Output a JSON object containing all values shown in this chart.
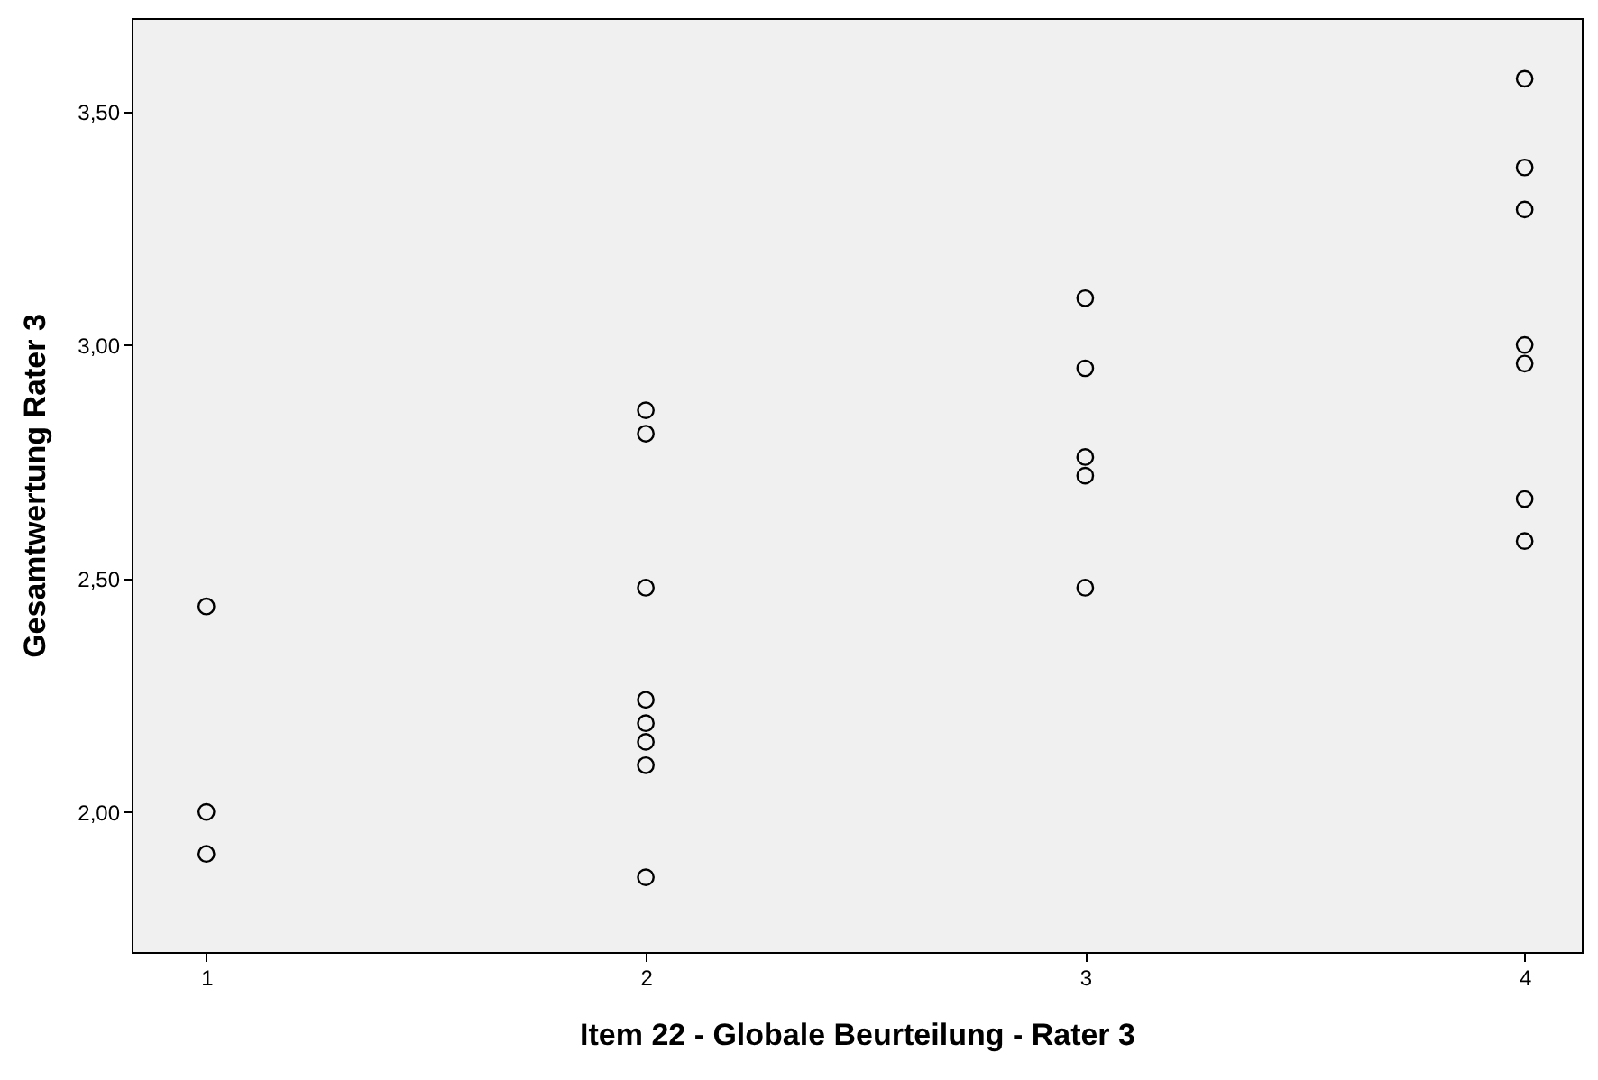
{
  "chart_data": {
    "type": "scatter",
    "xlabel": "Item 22 - Globale Beurteilung - Rater 3",
    "ylabel": "Gesamtwertung Rater 3",
    "x": [
      1,
      1,
      1,
      2,
      2,
      2,
      2,
      2,
      2,
      2,
      2,
      3,
      3,
      3,
      3,
      3,
      4,
      4,
      4,
      4,
      4,
      4,
      4
    ],
    "values": [
      2.44,
      2.0,
      1.91,
      2.86,
      2.81,
      2.48,
      2.24,
      2.19,
      2.15,
      2.1,
      1.86,
      3.1,
      2.95,
      2.76,
      2.72,
      2.48,
      3.57,
      3.38,
      3.29,
      3.0,
      2.96,
      2.67,
      2.58
    ],
    "color": "#000000",
    "marker": "circle",
    "grid": false,
    "xlim": [
      0.83,
      4.13
    ],
    "xticks": [
      1,
      2,
      3,
      4
    ],
    "ylim": [
      1.7,
      3.7
    ],
    "yticks": [
      {
        "value": 2,
        "label": "2,00"
      },
      {
        "value": 2.5,
        "label": "2,50"
      },
      {
        "value": 3,
        "label": "3,00"
      },
      {
        "value": 3.5,
        "label": "3,50"
      }
    ]
  }
}
